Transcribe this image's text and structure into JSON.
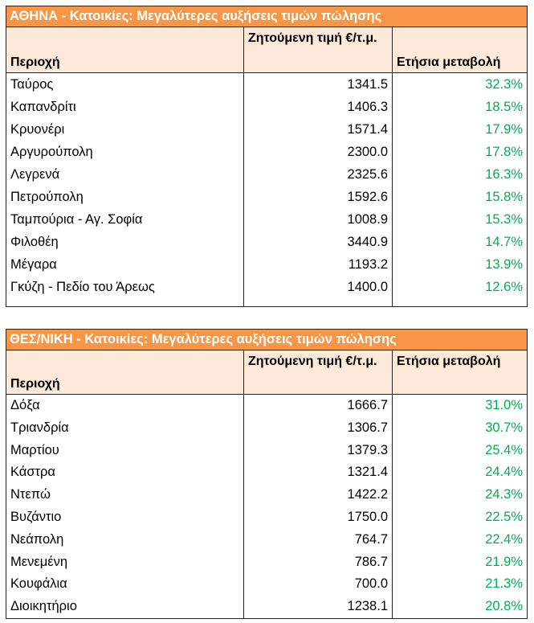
{
  "athens": {
    "title": "ΑΘΗΝΑ - Κατοικίες: Μεγαλύτερες αυξήσεις τιμών πώλησης",
    "headers": [
      "Περιοχή",
      "Ζητούμενη τιμή €/τ.μ.",
      "Ετήσια μεταβολή"
    ],
    "rows": [
      [
        "Ταύρος",
        "1341.5",
        "32.3%"
      ],
      [
        "Καπανδρίτι",
        "1406.3",
        "18.5%"
      ],
      [
        "Κρυονέρι",
        "1571.4",
        "17.9%"
      ],
      [
        "Αργυρούπολη",
        "2300.0",
        "17.8%"
      ],
      [
        "Λεγρενά",
        "2325.6",
        "16.3%"
      ],
      [
        "Πετρούπολη",
        "1592.6",
        "15.8%"
      ],
      [
        "Ταμπούρια - Αγ. Σοφία",
        "1008.9",
        "15.3%"
      ],
      [
        "Φιλοθέη",
        "3440.9",
        "14.7%"
      ],
      [
        "Μέγαρα",
        "1193.2",
        "13.9%"
      ],
      [
        "Γκύζη - Πεδίο του Άρεως",
        "1400.0",
        "12.6%"
      ]
    ]
  },
  "thessaloniki": {
    "title": "ΘΕΣ/ΝΙΚΗ - Κατοικίες: Μεγαλύτερες αυξήσεις τιμών πώλησης",
    "headers": [
      "Περιοχή",
      "Ζητούμενη τιμή €/τ.μ.",
      "Ετήσια μεταβολή"
    ],
    "rows": [
      [
        "Δόξα",
        "1666.7",
        "31.0%"
      ],
      [
        "Τριανδρία",
        "1306.7",
        "30.7%"
      ],
      [
        "Μαρτίου",
        "1379.3",
        "25.4%"
      ],
      [
        "Κάστρα",
        "1321.4",
        "24.4%"
      ],
      [
        "Ντεπώ",
        "1422.2",
        "24.3%"
      ],
      [
        "Βυζάντιο",
        "1750.0",
        "22.5%"
      ],
      [
        "Νεάπολη",
        "764.7",
        "22.4%"
      ],
      [
        "Μενεμένη",
        "786.7",
        "21.9%"
      ],
      [
        "Κουφάλια",
        "700.0",
        "21.3%"
      ],
      [
        "Διοικητήριο",
        "1238.1",
        "20.8%"
      ]
    ]
  },
  "colors": {
    "title_bg": "#f79646",
    "header_bg": "#fde9d9",
    "change_text": "#00b050"
  }
}
